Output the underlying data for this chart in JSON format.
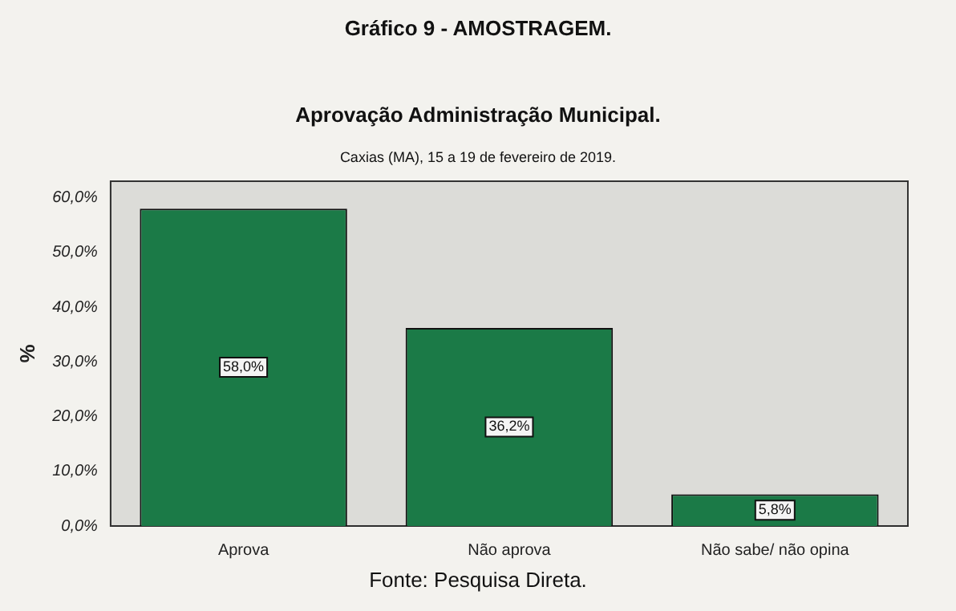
{
  "chart_data": {
    "type": "bar",
    "title": "Aprovação Administração Municipal.",
    "subtitle": "Caxias (MA), 15 a 19 de fevereiro de 2019.",
    "ylabel": "%",
    "annotations": [
      "Gráfico 9 - AMOSTRAGEM.",
      "Fonte: Pesquisa Direta."
    ],
    "categories": [
      "Aprova",
      "Não aprova",
      "Não sabe/ não opina"
    ],
    "values": [
      58.0,
      36.2,
      5.8
    ],
    "color": "#1b7a47",
    "value_labels": [
      "58,0%",
      "36,2%",
      "5,8%"
    ],
    "ylim": [
      0,
      63
    ],
    "yticks": [
      {
        "value": 0,
        "label": "0,0%"
      },
      {
        "value": 10,
        "label": "10,0%"
      },
      {
        "value": 20,
        "label": "20,0%"
      },
      {
        "value": 30,
        "label": "30,0%"
      },
      {
        "value": 40,
        "label": "40,0%"
      },
      {
        "value": 50,
        "label": "50,0%"
      },
      {
        "value": 60,
        "label": "60,0%"
      }
    ],
    "grid": false,
    "legend": false
  }
}
